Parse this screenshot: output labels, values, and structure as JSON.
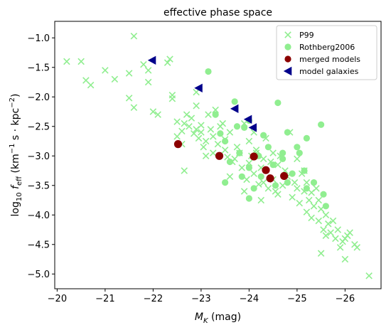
{
  "chart_data": {
    "type": "scatter",
    "title": "effective phase space",
    "xlabel": "M_K (mag)",
    "ylabel": "log10 f_eff (km^-1 s · kpc^-2)",
    "xlim": [
      -19.95,
      -26.75
    ],
    "ylim": [
      -5.25,
      -0.72
    ],
    "x_inverted": true,
    "xticks": [
      -20,
      -21,
      -22,
      -23,
      -24,
      -25,
      -26
    ],
    "yticks": [
      -1.0,
      -1.5,
      -2.0,
      -2.5,
      -3.0,
      -3.5,
      -4.0,
      -4.5,
      -5.0
    ],
    "legend_position": "top-right",
    "colors": {
      "p99": "#90ee90",
      "rothberg": "#90ee90",
      "merged": "#8b0000",
      "model": "#00008b"
    },
    "series": [
      {
        "name": "P99",
        "marker": "x",
        "points": [
          [
            -20.2,
            -1.4
          ],
          [
            -20.5,
            -1.4
          ],
          [
            -20.6,
            -1.72
          ],
          [
            -20.7,
            -1.8
          ],
          [
            -21.0,
            -1.55
          ],
          [
            -21.2,
            -1.7
          ],
          [
            -21.5,
            -1.6
          ],
          [
            -21.6,
            -0.97
          ],
          [
            -21.8,
            -1.45
          ],
          [
            -21.9,
            -1.55
          ],
          [
            -21.9,
            -1.75
          ],
          [
            -21.5,
            -2.02
          ],
          [
            -21.6,
            -2.18
          ],
          [
            -22.0,
            -2.25
          ],
          [
            -22.1,
            -2.3
          ],
          [
            -22.3,
            -1.42
          ],
          [
            -22.35,
            -1.36
          ],
          [
            -22.4,
            -1.97
          ],
          [
            -22.4,
            -2.03
          ],
          [
            -22.5,
            -2.42
          ],
          [
            -22.6,
            -2.58
          ],
          [
            -22.6,
            -2.8
          ],
          [
            -22.5,
            -2.67
          ],
          [
            -22.65,
            -2.45
          ],
          [
            -22.7,
            -2.3
          ],
          [
            -22.75,
            -2.5
          ],
          [
            -22.8,
            -2.36
          ],
          [
            -22.9,
            -1.92
          ],
          [
            -22.9,
            -2.15
          ],
          [
            -22.9,
            -2.55
          ],
          [
            -22.95,
            -2.7
          ],
          [
            -23.0,
            -2.6
          ],
          [
            -23.0,
            -2.48
          ],
          [
            -23.05,
            -2.85
          ],
          [
            -23.1,
            -2.75
          ],
          [
            -23.1,
            -3.0
          ],
          [
            -23.15,
            -2.3
          ],
          [
            -23.2,
            -2.55
          ],
          [
            -23.25,
            -2.67
          ],
          [
            -23.3,
            -2.22
          ],
          [
            -23.35,
            -2.8
          ],
          [
            -23.4,
            -2.5
          ],
          [
            -23.5,
            -2.72
          ],
          [
            -23.5,
            -2.9
          ],
          [
            -23.55,
            -3.02
          ],
          [
            -23.6,
            -2.6
          ],
          [
            -23.65,
            -3.1
          ],
          [
            -23.7,
            -3.05
          ],
          [
            -23.75,
            -2.85
          ],
          [
            -23.8,
            -2.95
          ],
          [
            -23.85,
            -3.2
          ],
          [
            -23.9,
            -2.45
          ],
          [
            -23.95,
            -3.4
          ],
          [
            -24.0,
            -2.75
          ],
          [
            -24.0,
            -3.12
          ],
          [
            -24.05,
            -3.0
          ],
          [
            -24.1,
            -2.6
          ],
          [
            -24.1,
            -3.3
          ],
          [
            -24.15,
            -2.9
          ],
          [
            -24.2,
            -3.48
          ],
          [
            -24.25,
            -3.2
          ],
          [
            -24.3,
            -3.05
          ],
          [
            -24.35,
            -2.7
          ],
          [
            -24.4,
            -3.55
          ],
          [
            -24.45,
            -3.1
          ],
          [
            -24.5,
            -2.95
          ],
          [
            -24.5,
            -3.4
          ],
          [
            -24.55,
            -3.6
          ],
          [
            -24.6,
            -3.15
          ],
          [
            -24.65,
            -3.0
          ],
          [
            -24.7,
            -3.5
          ],
          [
            -24.75,
            -3.25
          ],
          [
            -24.8,
            -3.35
          ],
          [
            -24.85,
            -2.6
          ],
          [
            -24.9,
            -3.7
          ],
          [
            -24.95,
            -3.45
          ],
          [
            -25.0,
            -3.05
          ],
          [
            -25.0,
            -3.55
          ],
          [
            -25.05,
            -3.8
          ],
          [
            -25.1,
            -3.3
          ],
          [
            -25.15,
            -3.6
          ],
          [
            -25.2,
            -3.95
          ],
          [
            -25.2,
            -3.45
          ],
          [
            -25.25,
            -3.75
          ],
          [
            -25.3,
            -4.05
          ],
          [
            -25.3,
            -3.62
          ],
          [
            -25.35,
            -3.85
          ],
          [
            -25.4,
            -3.55
          ],
          [
            -25.45,
            -4.1
          ],
          [
            -25.5,
            -3.9
          ],
          [
            -25.55,
            -4.25
          ],
          [
            -25.6,
            -4.0
          ],
          [
            -25.6,
            -4.35
          ],
          [
            -25.65,
            -4.15
          ],
          [
            -25.7,
            -4.3
          ],
          [
            -25.75,
            -4.1
          ],
          [
            -25.8,
            -4.4
          ],
          [
            -25.85,
            -4.25
          ],
          [
            -25.9,
            -4.55
          ],
          [
            -25.95,
            -4.45
          ],
          [
            -26.0,
            -4.4
          ],
          [
            -26.0,
            -4.75
          ],
          [
            -26.05,
            -4.35
          ],
          [
            -26.1,
            -4.3
          ],
          [
            -26.2,
            -4.5
          ],
          [
            -26.25,
            -4.55
          ],
          [
            -25.5,
            -4.65
          ],
          [
            -26.5,
            -5.03
          ],
          [
            -22.65,
            -3.25
          ],
          [
            -23.25,
            -2.95
          ],
          [
            -23.6,
            -3.35
          ],
          [
            -24.3,
            -3.45
          ],
          [
            -24.6,
            -3.65
          ],
          [
            -23.9,
            -3.6
          ],
          [
            -24.25,
            -3.75
          ],
          [
            -25.15,
            -3.25
          ],
          [
            -25.45,
            -3.75
          ],
          [
            -24.15,
            -2.95
          ],
          [
            -23.45,
            -2.45
          ],
          [
            -22.85,
            -2.62
          ]
        ]
      },
      {
        "name": "Rothberg2006",
        "marker": "o",
        "points": [
          [
            -23.15,
            -1.57
          ],
          [
            -23.7,
            -2.08
          ],
          [
            -24.6,
            -2.1
          ],
          [
            -25.5,
            -2.47
          ],
          [
            -23.3,
            -2.3
          ],
          [
            -23.75,
            -2.5
          ],
          [
            -23.4,
            -2.62
          ],
          [
            -24.0,
            -2.4
          ],
          [
            -24.3,
            -2.65
          ],
          [
            -24.8,
            -2.6
          ],
          [
            -25.0,
            -2.85
          ],
          [
            -25.2,
            -2.7
          ],
          [
            -23.5,
            -2.75
          ],
          [
            -23.8,
            -2.95
          ],
          [
            -24.2,
            -3.0
          ],
          [
            -24.4,
            -2.85
          ],
          [
            -24.7,
            -2.95
          ],
          [
            -25.05,
            -2.95
          ],
          [
            -23.6,
            -3.1
          ],
          [
            -23.85,
            -3.35
          ],
          [
            -24.0,
            -3.2
          ],
          [
            -24.25,
            -3.35
          ],
          [
            -24.5,
            -3.15
          ],
          [
            -24.9,
            -3.3
          ],
          [
            -25.15,
            -3.25
          ],
          [
            -23.5,
            -3.45
          ],
          [
            -24.1,
            -3.55
          ],
          [
            -24.55,
            -3.5
          ],
          [
            -24.8,
            -3.45
          ],
          [
            -25.2,
            -3.55
          ],
          [
            -25.35,
            -3.45
          ],
          [
            -25.55,
            -3.65
          ],
          [
            -25.6,
            -3.85
          ],
          [
            -24.0,
            -3.72
          ],
          [
            -23.9,
            -2.52
          ],
          [
            -24.7,
            -3.05
          ]
        ]
      },
      {
        "name": "merged models",
        "marker": "o",
        "points": [
          [
            -22.52,
            -2.8
          ],
          [
            -23.38,
            -3.0
          ],
          [
            -24.1,
            -3.01
          ],
          [
            -24.35,
            -3.24
          ],
          [
            -24.44,
            -3.38
          ],
          [
            -24.73,
            -3.34
          ]
        ]
      },
      {
        "name": "model galaxies",
        "marker": "<",
        "points": [
          [
            -21.98,
            -1.38
          ],
          [
            -22.95,
            -1.85
          ],
          [
            -23.7,
            -2.2
          ],
          [
            -23.98,
            -2.38
          ],
          [
            -24.08,
            -2.52
          ]
        ]
      }
    ]
  }
}
